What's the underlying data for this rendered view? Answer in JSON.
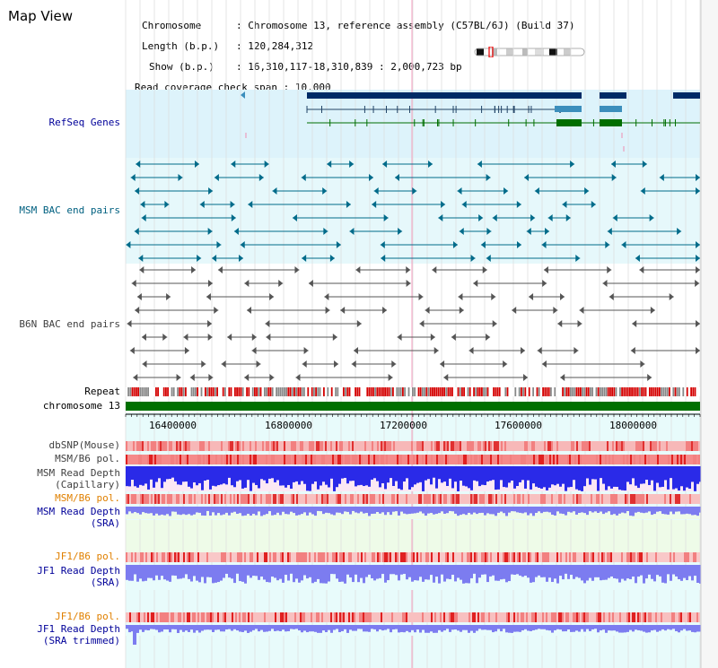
{
  "app": {
    "title": "Map View"
  },
  "header": {
    "chromosome_label": "Chromosome",
    "chromosome_value": "Chromosome 13, reference assembly (C57BL/6J) (Build 37)",
    "length_label": "Length (b.p.)",
    "length_value": "120,284,312",
    "show_label": "Show (b.p.)",
    "show_value": "16,310,117-18,310,839 : 2,000,723 bp",
    "coverage_label": "Read coverage check span",
    "coverage_value": "10,000"
  },
  "tracks": {
    "refseq": "RefSeq Genes",
    "msm_bac": "MSM BAC end pairs",
    "b6n_bac": "B6N BAC end pairs",
    "repeat": "Repeat",
    "chromosome": "chromosome 13",
    "dbsnp": "dbSNP(Mouse)",
    "msm_b6_pol_1": "MSM/B6 pol.",
    "msm_read_depth_cap_1": "MSM Read Depth",
    "msm_read_depth_cap_2": "(Capillary)",
    "msm_b6_pol_2": "MSM/B6 pol.",
    "msm_read_depth_sra_1": "MSM Read Depth",
    "msm_read_depth_sra_2": "(SRA)",
    "jf1_b6_pol_1": "JF1/B6 pol.",
    "jf1_read_depth_1": "JF1 Read Depth",
    "jf1_read_depth_2": "(SRA)",
    "jf1_b6_pol_2": "JF1/B6 pol.",
    "jf1_read_depth_trim_1": "JF1 Read Depth",
    "jf1_read_depth_trim_2": "(SRA trimmed)"
  },
  "axis": {
    "ticks": [
      "16400000",
      "16800000",
      "17200000",
      "17600000",
      "18000000"
    ]
  },
  "colors": {
    "label_blue": "#000099",
    "label_teal": "#006080",
    "label_gray": "#404040",
    "label_orange": "#e08000",
    "refseq_bg": "#ddf3fb",
    "msm_bac_bg": "#e6f8fb",
    "b6n_bg": "#ffffff",
    "lower_bg": "#e8fbfb",
    "gene_dark": "#002b66",
    "gene_mid": "#3c8ebc",
    "gene_green": "#006e00",
    "bac_teal": "#006b8a",
    "bac_gray": "#555555",
    "repeat_red": "#d40000",
    "chrom_green": "#007000",
    "depth_blue": "#2a2ae8",
    "depth_light": "#7c7cf0"
  }
}
